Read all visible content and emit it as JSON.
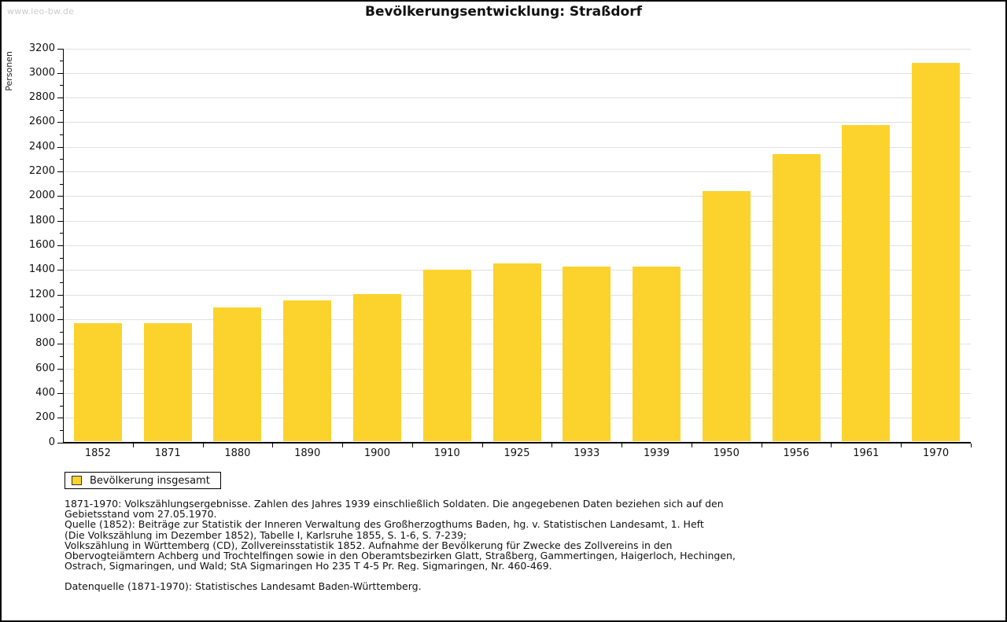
{
  "page": {
    "watermark": "www.leo-bw.de",
    "title": "Bevölkerungsentwicklung: Straßdorf"
  },
  "chart_data": {
    "type": "bar",
    "title": "Bevölkerungsentwicklung: Straßdorf",
    "xlabel": "",
    "ylabel": "Personen",
    "categories": [
      "1852",
      "1871",
      "1880",
      "1890",
      "1900",
      "1910",
      "1925",
      "1933",
      "1939",
      "1950",
      "1956",
      "1961",
      "1970"
    ],
    "series": [
      {
        "name": "Bevölkerung insgesamt",
        "values": [
          970,
          970,
          1095,
          1155,
          1205,
          1405,
          1455,
          1430,
          1430,
          2040,
          2340,
          2580,
          3080
        ]
      }
    ],
    "ylim": [
      0,
      3200
    ],
    "ytick_step": 200,
    "yminor_step": 100,
    "grid": true,
    "legend_position": "bottom-left",
    "bar_color": "#fcd32d"
  },
  "legend": {
    "label": "Bevölkerung insgesamt",
    "swatch_color": "#fcd32d"
  },
  "footnotes": {
    "lines": [
      "1871-1970: Volkszählungsergebnisse. Zahlen des Jahres 1939 einschließlich Soldaten. Die angegebenen Daten beziehen sich auf den",
      "Gebietsstand vom 27.05.1970.",
      "Quelle (1852): Beiträge zur Statistik der Inneren Verwaltung des Großherzogthums Baden, hg. v. Statistischen Landesamt, 1. Heft",
      "(Die Volkszählung im Dezember 1852), Tabelle I, Karlsruhe 1855, S. 1-6, S. 7-239;",
      "Volkszählung in Württemberg (CD), Zollvereinsstatistik 1852. Aufnahme der Bevölkerung für Zwecke des Zollvereins in den",
      "Obervogteiämtern Achberg und Trochtelfingen sowie in den Oberamtsbezirken Glatt, Straßberg, Gammertingen, Haigerloch, Hechingen,",
      "Ostrach, Sigmaringen, und Wald; StA Sigmaringen Ho 235 T 4-5 Pr. Reg. Sigmaringen, Nr. 460-469."
    ],
    "datasource": "Datenquelle (1871-1970): Statistisches Landesamt Baden-Württemberg."
  },
  "colors": {
    "bar": "#fcd32d",
    "gridline": "#e0e0e0",
    "axis": "#000000",
    "watermark": "#cccccc",
    "text": "#111111"
  }
}
